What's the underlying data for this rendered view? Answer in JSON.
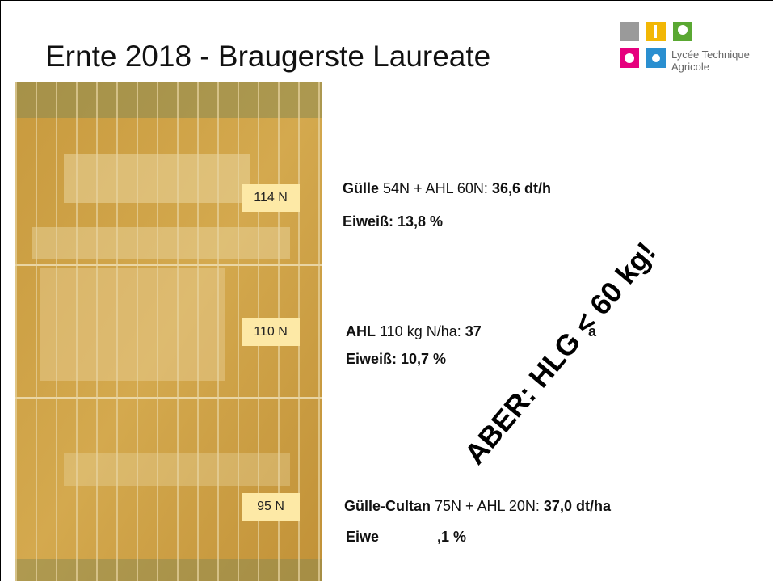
{
  "title": "Ernte 2018 - Braugerste Laureate",
  "logo": {
    "line1": "Lycée Technique",
    "line2": "Agricole"
  },
  "plot_labels": [
    "114 N",
    "110 N",
    "95 N"
  ],
  "blocks": [
    {
      "line1": [
        "Gülle",
        " 54N + AHL 60N: ",
        "36,6 dt/h"
      ],
      "line2": [
        "Eiweiß: 13,8 %"
      ]
    },
    {
      "line1": [
        "AHL",
        " 110 kg N/ha: ",
        "37",
        "a"
      ],
      "line2": [
        "Eiweiß: 10,7 %"
      ]
    },
    {
      "line1": [
        "Gülle-Cultan",
        " 75N + AHL 20N: ",
        "37,0 dt/ha"
      ],
      "line2": [
        "Eiwe",
        ",1 %"
      ]
    }
  ],
  "callout": "ABER: HLG < 60 kg!"
}
